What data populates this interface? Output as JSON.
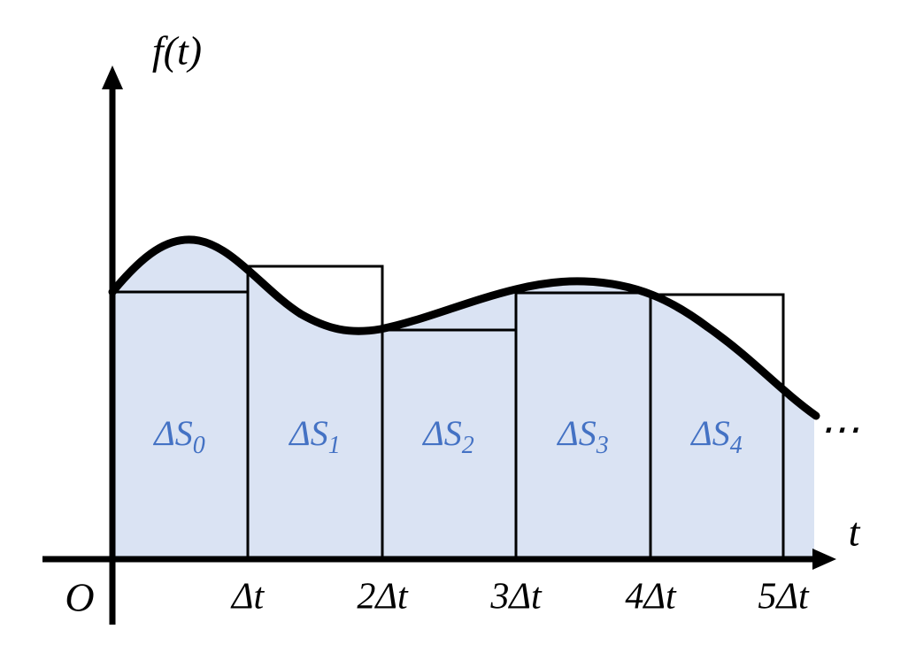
{
  "axes": {
    "y_label": "f(t)",
    "x_label": "t",
    "origin": "O"
  },
  "ticks": [
    "Δt",
    "2Δt",
    "3Δt",
    "4Δt",
    "5Δt"
  ],
  "regions": [
    {
      "label": "ΔS",
      "subscript": "0"
    },
    {
      "label": "ΔS",
      "subscript": "1"
    },
    {
      "label": "ΔS",
      "subscript": "2"
    },
    {
      "label": "ΔS",
      "subscript": "3"
    },
    {
      "label": "ΔS",
      "subscript": "4"
    }
  ],
  "continuation": "⋯"
}
